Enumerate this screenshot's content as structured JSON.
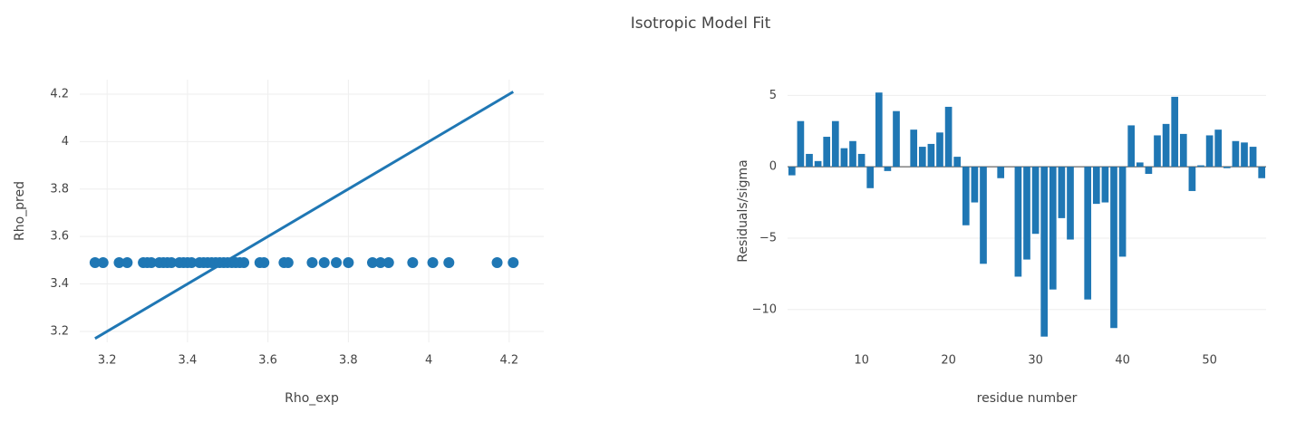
{
  "title": "Isotropic Model Fit",
  "chart_data": [
    {
      "type": "scatter",
      "x_label": "Rho_exp",
      "y_label": "Rho_pred",
      "xlim": [
        3.132,
        4.286
      ],
      "ylim": [
        3.154,
        4.261
      ],
      "xticks": [
        3.2,
        3.4,
        3.6,
        3.8,
        4,
        4.2
      ],
      "yticks": [
        3.2,
        3.4,
        3.6,
        3.8,
        4,
        4.2
      ],
      "xgrid": true,
      "ygrid": true,
      "series": [
        {
          "mode": "markers",
          "color": "#1f77b4",
          "x": [
            3.17,
            3.19,
            3.23,
            3.25,
            3.29,
            3.3,
            3.31,
            3.33,
            3.34,
            3.35,
            3.36,
            3.38,
            3.39,
            3.4,
            3.41,
            3.43,
            3.44,
            3.45,
            3.46,
            3.47,
            3.48,
            3.49,
            3.5,
            3.51,
            3.52,
            3.53,
            3.54,
            3.58,
            3.59,
            3.64,
            3.65,
            3.71,
            3.74,
            3.77,
            3.8,
            3.86,
            3.88,
            3.9,
            3.96,
            4.01,
            4.05,
            4.17,
            4.21
          ],
          "values": [
            3.49,
            3.49,
            3.49,
            3.49,
            3.49,
            3.49,
            3.49,
            3.49,
            3.49,
            3.49,
            3.49,
            3.49,
            3.49,
            3.49,
            3.49,
            3.49,
            3.49,
            3.49,
            3.49,
            3.49,
            3.49,
            3.49,
            3.49,
            3.49,
            3.49,
            3.49,
            3.49,
            3.49,
            3.49,
            3.49,
            3.49,
            3.49,
            3.49,
            3.49,
            3.49,
            3.49,
            3.49,
            3.49,
            3.49,
            3.49,
            3.49,
            3.49,
            3.49
          ]
        },
        {
          "mode": "lines",
          "color": "#1f77b4",
          "x": [
            3.17,
            4.21
          ],
          "values": [
            3.17,
            4.21
          ]
        }
      ]
    },
    {
      "type": "bar",
      "x_label": "residue number",
      "y_label": "Residuals/sigma",
      "xlim": [
        1.5,
        56.5
      ],
      "ylim": [
        -12.3,
        6.1
      ],
      "xticks": [
        10,
        20,
        30,
        40,
        50
      ],
      "yticks": [
        {
          "value": -10,
          "label": "−10"
        },
        {
          "value": -5,
          "label": "−5"
        },
        0,
        5
      ],
      "xgrid": false,
      "ygrid": true,
      "zeroline": true,
      "color": "#1f77b4",
      "x": [
        2,
        3,
        4,
        5,
        6,
        7,
        8,
        9,
        10,
        11,
        12,
        13,
        14,
        16,
        17,
        18,
        19,
        20,
        21,
        22,
        23,
        24,
        26,
        28,
        29,
        30,
        31,
        32,
        33,
        34,
        36,
        37,
        38,
        39,
        40,
        41,
        42,
        43,
        44,
        45,
        46,
        47,
        48,
        49,
        50,
        51,
        52,
        53,
        54,
        55,
        56
      ],
      "values": [
        -0.6,
        3.2,
        0.9,
        0.4,
        2.1,
        3.2,
        1.3,
        1.8,
        0.9,
        -1.5,
        5.2,
        -0.3,
        3.9,
        2.6,
        1.4,
        1.6,
        2.4,
        4.2,
        0.7,
        -4.1,
        -2.5,
        -6.8,
        -0.8,
        -7.7,
        -6.5,
        -4.7,
        -11.9,
        -8.6,
        -3.6,
        -5.1,
        -9.3,
        -2.6,
        -2.5,
        -11.3,
        -6.3,
        2.9,
        0.3,
        -0.5,
        2.2,
        3.0,
        4.9,
        2.3,
        -1.7,
        0.1,
        2.2,
        2.6,
        -0.1,
        1.8,
        1.7,
        1.4,
        -0.8
      ]
    }
  ]
}
